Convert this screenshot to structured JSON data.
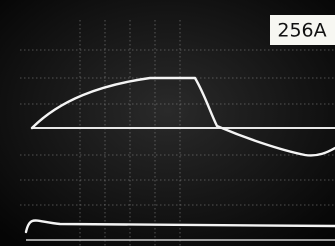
{
  "label": "256A"
}
